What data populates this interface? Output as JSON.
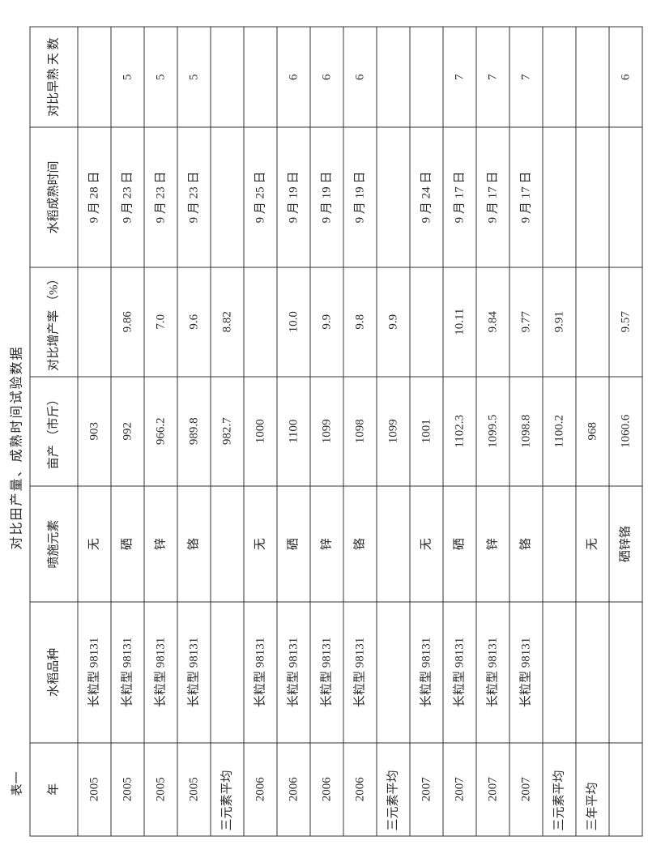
{
  "table": {
    "label": "表一",
    "title": "对比田产量、成熟时间试验数据",
    "columns": [
      "年",
      "水稻品种",
      "喷施元素",
      "亩产\n（市斤）",
      "对比增产率\n（%）",
      "水稻成熟时间",
      "对比早熟\n天 数"
    ],
    "rows": [
      [
        "2005",
        "长粒型 98131",
        "无",
        "903",
        "",
        "9 月 28 日",
        ""
      ],
      [
        "2005",
        "长粒型 98131",
        "硒",
        "992",
        "9.86",
        "9 月 23 日",
        "5"
      ],
      [
        "2005",
        "长粒型 98131",
        "锌",
        "966.2",
        "7.0",
        "9 月 23 日",
        "5"
      ],
      [
        "2005",
        "长粒型 98131",
        "铬",
        "989.8",
        "9.6",
        "9 月 23 日",
        "5"
      ],
      [
        "三元素平均",
        "",
        "",
        "982.7",
        "8.82",
        "",
        ""
      ],
      [
        "2006",
        "长粒型 98131",
        "无",
        "1000",
        "",
        "9 月 25 日",
        ""
      ],
      [
        "2006",
        "长粒型 98131",
        "硒",
        "1100",
        "10.0",
        "9 月 19 日",
        "6"
      ],
      [
        "2006",
        "长粒型 98131",
        "锌",
        "1099",
        "9.9",
        "9 月 19 日",
        "6"
      ],
      [
        "2006",
        "长粒型 98131",
        "铬",
        "1098",
        "9.8",
        "9 月 19 日",
        "6"
      ],
      [
        "三元素平均",
        "",
        "",
        "1099",
        "9.9",
        "",
        ""
      ],
      [
        "2007",
        "长粒型 98131",
        "无",
        "1001",
        "",
        "9 月 24 日",
        ""
      ],
      [
        "2007",
        "长粒型 98131",
        "硒",
        "1102.3",
        "10.11",
        "9 月 17 日",
        "7"
      ],
      [
        "2007",
        "长粒型 98131",
        "锌",
        "1099.5",
        "9.84",
        "9 月 17 日",
        "7"
      ],
      [
        "2007",
        "长粒型 98131",
        "铬",
        "1098.8",
        "9.77",
        "9 月 17 日",
        "7"
      ],
      [
        "三元素平均",
        "",
        "",
        "1100.2",
        "9.91",
        "",
        ""
      ],
      [
        "三年平均",
        "",
        "无",
        "968",
        "",
        "",
        ""
      ],
      [
        "",
        "",
        "硒锌铬",
        "1060.6",
        "9.57",
        "",
        "6"
      ]
    ]
  }
}
